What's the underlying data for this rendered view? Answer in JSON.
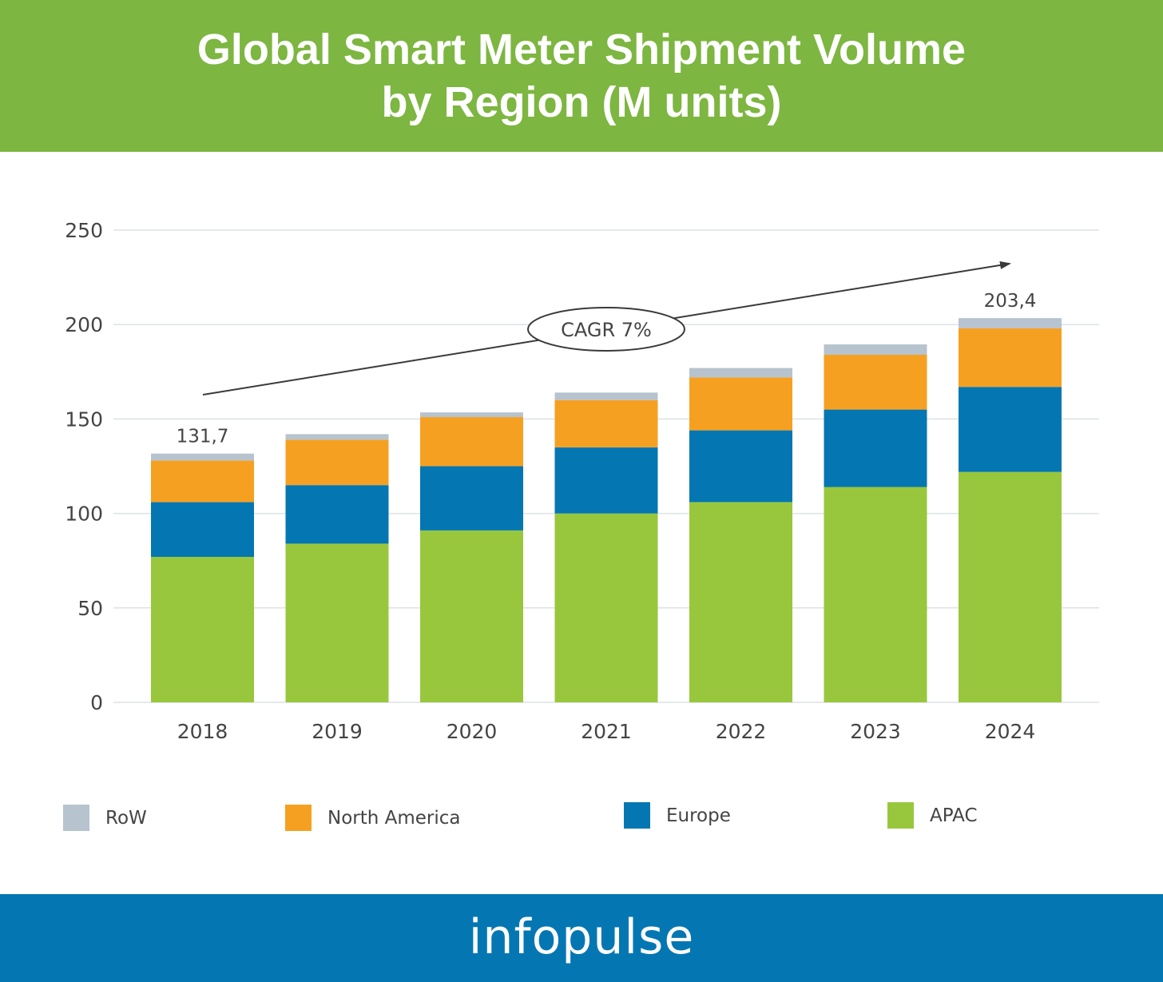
{
  "header": {
    "title_line1": "Global Smart Meter Shipment Volume",
    "title_line2": "by Region (M units)"
  },
  "footer": {
    "brand": "infopulse"
  },
  "colors": {
    "header_bg": "#7db640",
    "footer_bg": "#0477b3",
    "APAC": "#98c73d",
    "Europe": "#0477b3",
    "North America": "#f6a021",
    "RoW": "#b7c3ce",
    "grid": "#dde2e6",
    "axis_text": "#444444"
  },
  "chart_data": {
    "type": "bar",
    "stacked": true,
    "title": "Global Smart Meter Shipment Volume by Region (M units)",
    "xlabel": "",
    "ylabel": "",
    "ylim": [
      0,
      250
    ],
    "yticks": [
      0,
      50,
      100,
      150,
      200,
      250
    ],
    "grid": true,
    "legend_position": "bottom",
    "categories": [
      "2018",
      "2019",
      "2020",
      "2021",
      "2022",
      "2023",
      "2024"
    ],
    "series": [
      {
        "name": "APAC",
        "values": [
          77,
          84,
          91,
          100,
          106,
          114,
          122
        ]
      },
      {
        "name": "Europe",
        "values": [
          29,
          31,
          34,
          35,
          38,
          41,
          45
        ]
      },
      {
        "name": "North America",
        "values": [
          22,
          24,
          26,
          25,
          28,
          29,
          31
        ]
      },
      {
        "name": "RoW",
        "values": [
          3.7,
          3,
          2.5,
          4,
          5,
          5.5,
          5.4
        ]
      }
    ],
    "total_labels": [
      {
        "category": "2018",
        "text": "131,7"
      },
      {
        "category": "2024",
        "text": "203,4"
      }
    ],
    "annotation": {
      "text": "CAGR 7%"
    },
    "legend": [
      "RoW",
      "North America",
      "Europe",
      "APAC"
    ]
  }
}
